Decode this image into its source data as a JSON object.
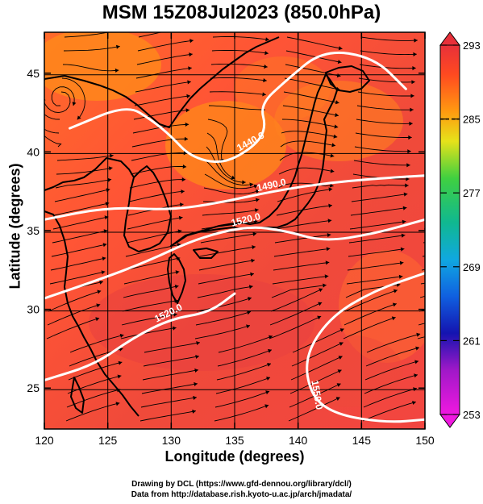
{
  "chart_data": {
    "type": "heatmap",
    "title": "MSM 15Z08Jul2023 (850.0hPa)",
    "xlabel": "Longitude (degrees)",
    "ylabel": "Latitude  (degrees)",
    "xlim": [
      120,
      150
    ],
    "ylim": [
      22.4,
      47.6
    ],
    "x_ticks": [
      "120",
      "125",
      "130",
      "135",
      "140",
      "145",
      "150"
    ],
    "y_ticks": [
      "25",
      "30",
      "35",
      "40",
      "45"
    ],
    "colorbar": {
      "range": [
        253,
        293
      ],
      "tick_labels": [
        "293",
        "285",
        "277",
        "269",
        "261",
        "253"
      ],
      "dashed_levels": [
        285
      ]
    },
    "contours": [
      {
        "label": "1440.0",
        "points": [
          [
            122,
            41.5
          ],
          [
            126.5,
            43
          ],
          [
            128.5,
            42
          ],
          [
            130,
            41
          ],
          [
            131.5,
            39.7
          ],
          [
            134,
            39.2
          ],
          [
            136.5,
            40.3
          ],
          [
            137.5,
            41.5
          ],
          [
            137,
            43
          ],
          [
            139,
            44.5
          ],
          [
            142,
            46.5
          ],
          [
            146,
            46
          ],
          [
            148.5,
            44
          ]
        ]
      },
      {
        "label": "1490.0",
        "points": [
          [
            120,
            35.7
          ],
          [
            125,
            36.5
          ],
          [
            130,
            36.3
          ],
          [
            134,
            36.8
          ],
          [
            138,
            37.5
          ],
          [
            142,
            38
          ],
          [
            146,
            38.3
          ],
          [
            150,
            38.5
          ]
        ]
      },
      {
        "label": "1520.0",
        "points": [
          [
            120,
            30.7
          ],
          [
            124,
            31.8
          ],
          [
            128,
            33
          ],
          [
            132,
            34.5
          ],
          [
            136,
            35.3
          ],
          [
            139,
            35
          ],
          [
            142,
            34.3
          ],
          [
            146,
            34.8
          ],
          [
            150,
            35.7
          ]
        ]
      },
      {
        "label": "1520.0",
        "points": [
          [
            120,
            25.5
          ],
          [
            124,
            26.5
          ],
          [
            127,
            28.2
          ],
          [
            130,
            29.4
          ],
          [
            133,
            29.8
          ],
          [
            135,
            31
          ]
        ]
      },
      {
        "label": "1550.0",
        "points": [
          [
            150,
            32.3
          ],
          [
            146,
            31.2
          ],
          [
            142.5,
            29.5
          ],
          [
            140.5,
            27
          ],
          [
            141,
            24.5
          ],
          [
            143,
            23.3
          ],
          [
            147,
            22.8
          ],
          [
            150,
            23
          ]
        ]
      }
    ]
  }
}
